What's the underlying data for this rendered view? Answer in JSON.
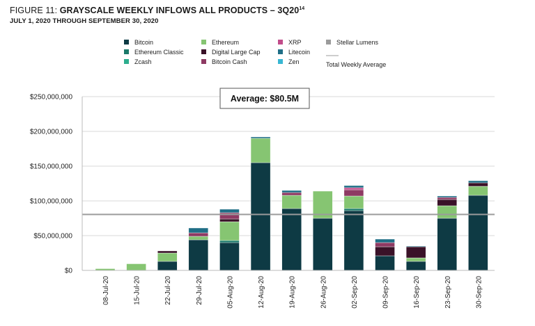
{
  "figure": {
    "label": "FIGURE 11:",
    "title": "GRAYSCALE WEEKLY INFLOWS ALL PRODUCTS – 3Q20",
    "footnote": "14",
    "subtitle": "JULY 1, 2020 THROUGH SEPTEMBER 30, 2020"
  },
  "chart_data": {
    "type": "bar",
    "stacked": true,
    "title": "GRAYSCALE WEEKLY INFLOWS ALL PRODUCTS – 3Q20",
    "xlabel": "",
    "ylabel": "",
    "ylim": [
      0,
      250000000
    ],
    "yticks": [
      {
        "value": 0,
        "label": "$0"
      },
      {
        "value": 50000000,
        "label": "$50,000,000"
      },
      {
        "value": 100000000,
        "label": "$100,000,000"
      },
      {
        "value": 150000000,
        "label": "$150,000,000"
      },
      {
        "value": 200000000,
        "label": "$200,000,000"
      },
      {
        "value": 250000000,
        "label": "$250,000,000"
      }
    ],
    "categories": [
      "08-Jul-20",
      "15-Jul-20",
      "22-Jul-20",
      "29-Jul-20",
      "05-Aug-20",
      "12-Aug-20",
      "19-Aug-20",
      "26-Aug-20",
      "02-Sep-20",
      "09-Sep-20",
      "16-Sep-20",
      "23-Sep-20",
      "30-Sep-20"
    ],
    "series": [
      {
        "name": "Bitcoin",
        "color": "#0e3a44",
        "values": [
          0,
          0,
          13000000,
          44000000,
          40000000,
          155000000,
          89000000,
          75000000,
          86000000,
          21000000,
          13000000,
          75000000,
          108000000
        ]
      },
      {
        "name": "Ethereum Classic",
        "color": "#1b7a6a",
        "values": [
          0,
          0,
          0,
          0,
          3000000,
          0,
          0,
          0,
          3000000,
          0,
          0,
          0,
          0
        ]
      },
      {
        "name": "Zcash",
        "color": "#2dae8e",
        "values": [
          0,
          0,
          0,
          0,
          0,
          0,
          0,
          0,
          0,
          0,
          0,
          0,
          0
        ]
      },
      {
        "name": "Ethereum",
        "color": "#86c572",
        "values": [
          2500000,
          9500000,
          12000000,
          5000000,
          27000000,
          35000000,
          19000000,
          39000000,
          18000000,
          0,
          5000000,
          18000000,
          13000000
        ]
      },
      {
        "name": "Digital Large Cap",
        "color": "#3a1228",
        "values": [
          0,
          0,
          3000000,
          0,
          4000000,
          0,
          0,
          0,
          0,
          13000000,
          16000000,
          9000000,
          5000000
        ]
      },
      {
        "name": "Bitcoin Cash",
        "color": "#8e3a63",
        "values": [
          0,
          0,
          0,
          5000000,
          9000000,
          0,
          4000000,
          0,
          9000000,
          6000000,
          0,
          3000000,
          0
        ]
      },
      {
        "name": "XRP",
        "color": "#c14c8a",
        "values": [
          0,
          0,
          0,
          0,
          0,
          0,
          0,
          0,
          3000000,
          0,
          0,
          0,
          0
        ]
      },
      {
        "name": "Litecoin",
        "color": "#1f6e86",
        "values": [
          0,
          0,
          0,
          7000000,
          5000000,
          2000000,
          3000000,
          0,
          3000000,
          5000000,
          1000000,
          2000000,
          3000000
        ]
      },
      {
        "name": "Zen",
        "color": "#38b7d3",
        "values": [
          0,
          0,
          0,
          0,
          0,
          0,
          0,
          0,
          0,
          0,
          0,
          0,
          0
        ]
      },
      {
        "name": "Stellar Lumens",
        "color": "#9b9b9b",
        "values": [
          0,
          0,
          0,
          0,
          0,
          0,
          0,
          0,
          0,
          0,
          0,
          0,
          0
        ]
      }
    ],
    "average": {
      "label": "Total Weekly Average",
      "value": 80500000,
      "annotation": "Average: $80.5M",
      "color": "#9b9b9b"
    },
    "legend_order": [
      "Bitcoin",
      "Ethereum",
      "XRP",
      "Stellar Lumens",
      "Ethereum Classic",
      "Digital Large Cap",
      "Litecoin",
      "Zcash",
      "Bitcoin Cash",
      "Zen"
    ],
    "legend_position": "top"
  }
}
